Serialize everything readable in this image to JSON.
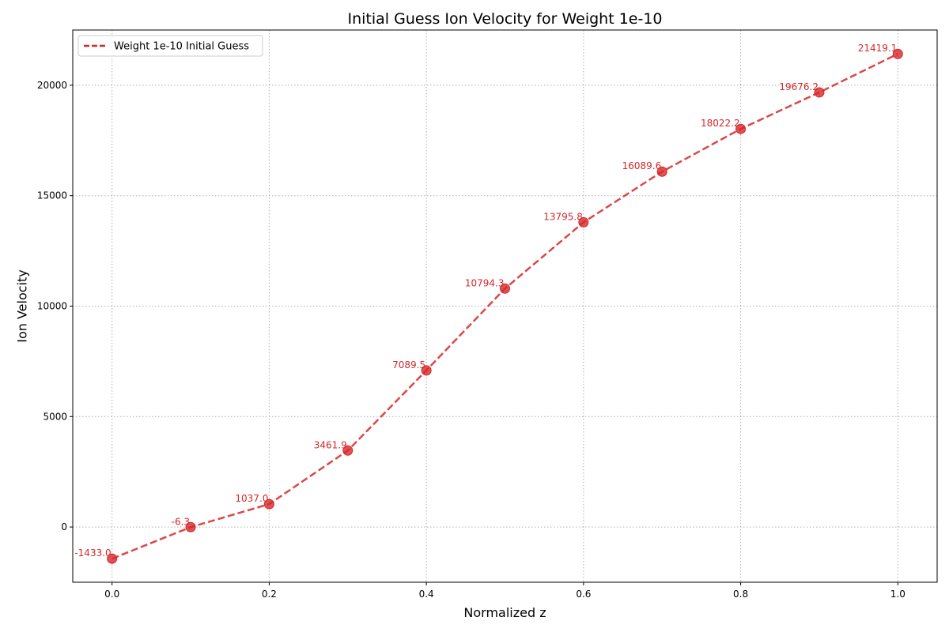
{
  "colors": {
    "series": "#d62728",
    "grid": "#b0b0b0",
    "axis": "#000000"
  },
  "chart_data": {
    "type": "line",
    "title": "Initial Guess Ion Velocity for Weight 1e-10",
    "xlabel": "Normalized z",
    "ylabel": "Ion Velocity",
    "xlim": [
      -0.05,
      1.05
    ],
    "ylim": [
      -2500,
      22500
    ],
    "xticks": [
      0.0,
      0.2,
      0.4,
      0.6,
      0.8,
      1.0
    ],
    "xtick_labels": [
      "0.0",
      "0.2",
      "0.4",
      "0.6",
      "0.8",
      "1.0"
    ],
    "yticks": [
      0,
      5000,
      10000,
      15000,
      20000
    ],
    "ytick_labels": [
      "0",
      "5000",
      "10000",
      "15000",
      "20000"
    ],
    "grid": true,
    "legend_position": "top-left",
    "series": [
      {
        "name": "Weight 1e-10 Initial Guess",
        "line_style": "dashed",
        "marker": "circle",
        "x": [
          0.0,
          0.1,
          0.2,
          0.3,
          0.4,
          0.5,
          0.6,
          0.7,
          0.8,
          0.9,
          1.0
        ],
        "values": [
          -1433.0,
          -6.3,
          1037.0,
          3461.9,
          7089.5,
          10794.3,
          13795.8,
          16089.6,
          18022.2,
          19676.2,
          21419.1
        ],
        "data_labels": [
          "-1433.0",
          "-6.3",
          "1037.0",
          "3461.9",
          "7089.5",
          "10794.3",
          "13795.8",
          "16089.6",
          "18022.2",
          "19676.2",
          "21419.1"
        ]
      }
    ]
  }
}
